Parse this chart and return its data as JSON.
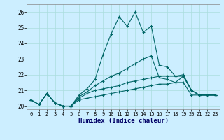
{
  "xlabel": "Humidex (Indice chaleur)",
  "bg_color": "#cceeff",
  "grid_color": "#aadddd",
  "line_color": "#006666",
  "xlim": [
    -0.5,
    23.5
  ],
  "ylim": [
    19.8,
    26.5
  ],
  "yticks": [
    20,
    21,
    22,
    23,
    24,
    25,
    26
  ],
  "xticks": [
    0,
    1,
    2,
    3,
    4,
    5,
    6,
    7,
    8,
    9,
    10,
    11,
    12,
    13,
    14,
    15,
    16,
    17,
    18,
    19,
    20,
    21,
    22,
    23
  ],
  "line1_x": [
    0,
    1,
    2,
    3,
    4,
    5,
    6,
    7,
    8,
    9,
    10,
    11,
    12,
    13,
    14,
    15,
    16,
    17,
    18,
    19,
    20,
    21,
    22,
    23
  ],
  "line1_y": [
    20.4,
    20.1,
    20.8,
    20.2,
    20.0,
    20.0,
    20.7,
    21.1,
    21.7,
    23.3,
    24.6,
    25.7,
    25.1,
    26.0,
    24.7,
    25.1,
    22.6,
    22.5,
    21.9,
    22.0,
    21.0,
    20.7,
    20.7,
    20.7
  ],
  "line2_x": [
    0,
    1,
    2,
    3,
    4,
    5,
    6,
    7,
    8,
    9,
    10,
    11,
    12,
    13,
    14,
    15,
    16,
    17,
    18,
    19,
    20,
    21,
    22,
    23
  ],
  "line2_y": [
    20.4,
    20.1,
    20.8,
    20.2,
    20.0,
    20.0,
    20.6,
    20.9,
    21.3,
    21.6,
    21.9,
    22.1,
    22.4,
    22.7,
    23.0,
    23.2,
    21.8,
    21.7,
    21.5,
    21.9,
    21.0,
    20.7,
    20.7,
    20.7
  ],
  "line3_x": [
    0,
    1,
    2,
    3,
    4,
    5,
    6,
    7,
    8,
    9,
    10,
    11,
    12,
    13,
    14,
    15,
    16,
    17,
    18,
    19,
    20,
    21,
    22,
    23
  ],
  "line3_y": [
    20.4,
    20.1,
    20.8,
    20.2,
    20.0,
    20.0,
    20.5,
    20.8,
    21.0,
    21.1,
    21.2,
    21.3,
    21.5,
    21.6,
    21.7,
    21.8,
    21.9,
    21.9,
    21.9,
    21.9,
    21.0,
    20.7,
    20.7,
    20.7
  ],
  "line4_x": [
    0,
    1,
    2,
    3,
    4,
    5,
    6,
    7,
    8,
    9,
    10,
    11,
    12,
    13,
    14,
    15,
    16,
    17,
    18,
    19,
    20,
    21,
    22,
    23
  ],
  "line4_y": [
    20.4,
    20.1,
    20.8,
    20.2,
    20.0,
    20.0,
    20.4,
    20.5,
    20.6,
    20.7,
    20.8,
    20.9,
    21.0,
    21.1,
    21.2,
    21.3,
    21.4,
    21.4,
    21.5,
    21.5,
    20.7,
    20.7,
    20.7,
    20.7
  ]
}
